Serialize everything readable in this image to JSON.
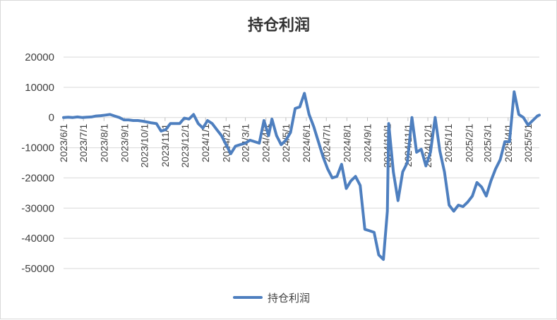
{
  "chart_data": {
    "type": "line",
    "title": "持仓利润",
    "xlabel": "",
    "ylabel": "",
    "ylim": [
      -50000,
      20000
    ],
    "yticks": [
      20000,
      10000,
      0,
      -10000,
      -20000,
      -30000,
      -40000,
      -50000
    ],
    "ytick_labels": [
      "20000",
      "10000",
      "0",
      "-10000",
      "-20000",
      "-30000",
      "-40000",
      "-50000"
    ],
    "x_range": [
      "2023-06-01",
      "2025-05-18"
    ],
    "xticks": [
      "2023/6/1",
      "2023/7/1",
      "2023/8/1",
      "2023/9/1",
      "2023/10/1",
      "2023/11/1",
      "2023/12/1",
      "2024/1/1",
      "2024/2/1",
      "2024/3/1",
      "2024/4/1",
      "2024/5/1",
      "2024/6/1",
      "2024/7/1",
      "2024/8/1",
      "2024/9/1",
      "2024/10/1",
      "2024/11/1",
      "2024/12/1",
      "2025/1/1",
      "2025/2/1",
      "2025/3/1",
      "2025/4/1",
      "2025/5/1"
    ],
    "grid": true,
    "legend": "bottom",
    "series": [
      {
        "name": "持仓利润",
        "color": "#4e7fbf",
        "points": [
          [
            "2023-06-01",
            0
          ],
          [
            "2023-06-08",
            100
          ],
          [
            "2023-06-15",
            0
          ],
          [
            "2023-06-22",
            200
          ],
          [
            "2023-06-29",
            0
          ],
          [
            "2023-07-06",
            100
          ],
          [
            "2023-07-13",
            200
          ],
          [
            "2023-07-20",
            500
          ],
          [
            "2023-07-27",
            600
          ],
          [
            "2023-08-03",
            800
          ],
          [
            "2023-08-10",
            1000
          ],
          [
            "2023-08-17",
            500
          ],
          [
            "2023-08-24",
            0
          ],
          [
            "2023-08-31",
            -800
          ],
          [
            "2023-09-07",
            -800
          ],
          [
            "2023-09-14",
            -1000
          ],
          [
            "2023-09-21",
            -1000
          ],
          [
            "2023-09-28",
            -1200
          ],
          [
            "2023-10-05",
            -1500
          ],
          [
            "2023-10-12",
            -1800
          ],
          [
            "2023-10-19",
            -2000
          ],
          [
            "2023-10-26",
            -4500
          ],
          [
            "2023-11-02",
            -4000
          ],
          [
            "2023-11-09",
            -2000
          ],
          [
            "2023-11-16",
            -2000
          ],
          [
            "2023-11-23",
            -2000
          ],
          [
            "2023-11-30",
            -200
          ],
          [
            "2023-12-07",
            -500
          ],
          [
            "2023-12-14",
            1000
          ],
          [
            "2023-12-21",
            -2000
          ],
          [
            "2023-12-28",
            -3500
          ],
          [
            "2024-01-04",
            -1000
          ],
          [
            "2024-01-11",
            -2000
          ],
          [
            "2024-01-18",
            -4000
          ],
          [
            "2024-01-25",
            -6000
          ],
          [
            "2024-02-01",
            -9000
          ],
          [
            "2024-02-08",
            -12000
          ],
          [
            "2024-02-15",
            -9500
          ],
          [
            "2024-02-22",
            -9000
          ],
          [
            "2024-03-01",
            -8500
          ],
          [
            "2024-03-08",
            -7500
          ],
          [
            "2024-03-15",
            -8000
          ],
          [
            "2024-03-22",
            -8500
          ],
          [
            "2024-03-29",
            -1000
          ],
          [
            "2024-04-05",
            -6000
          ],
          [
            "2024-04-10",
            -500
          ],
          [
            "2024-04-17",
            -6000
          ],
          [
            "2024-04-24",
            -9000
          ],
          [
            "2024-05-01",
            -7500
          ],
          [
            "2024-05-08",
            -5000
          ],
          [
            "2024-05-15",
            3000
          ],
          [
            "2024-05-22",
            3500
          ],
          [
            "2024-05-29",
            8000
          ],
          [
            "2024-06-05",
            1000
          ],
          [
            "2024-06-12",
            -3000
          ],
          [
            "2024-06-19",
            -8000
          ],
          [
            "2024-06-26",
            -13000
          ],
          [
            "2024-07-03",
            -17000
          ],
          [
            "2024-07-10",
            -20000
          ],
          [
            "2024-07-17",
            -19500
          ],
          [
            "2024-07-24",
            -15500
          ],
          [
            "2024-07-31",
            -23500
          ],
          [
            "2024-08-07",
            -21000
          ],
          [
            "2024-08-14",
            -19500
          ],
          [
            "2024-08-21",
            -22500
          ],
          [
            "2024-08-28",
            -37000
          ],
          [
            "2024-09-04",
            -37500
          ],
          [
            "2024-09-11",
            -38000
          ],
          [
            "2024-09-18",
            -45500
          ],
          [
            "2024-09-25",
            -47000
          ],
          [
            "2024-10-01",
            -31000
          ],
          [
            "2024-10-03",
            -2000
          ],
          [
            "2024-10-10",
            -18000
          ],
          [
            "2024-10-17",
            -27500
          ],
          [
            "2024-10-24",
            -18000
          ],
          [
            "2024-10-31",
            -15000
          ],
          [
            "2024-11-07",
            0
          ],
          [
            "2024-11-14",
            -11500
          ],
          [
            "2024-11-21",
            -10500
          ],
          [
            "2024-11-28",
            -16000
          ],
          [
            "2024-12-05",
            -11500
          ],
          [
            "2024-12-12",
            0
          ],
          [
            "2024-12-19",
            -11000
          ],
          [
            "2024-12-26",
            -18000
          ],
          [
            "2025-01-02",
            -29000
          ],
          [
            "2025-01-09",
            -31000
          ],
          [
            "2025-01-16",
            -29000
          ],
          [
            "2025-01-23",
            -29500
          ],
          [
            "2025-01-30",
            -28000
          ],
          [
            "2025-02-06",
            -26000
          ],
          [
            "2025-02-13",
            -21500
          ],
          [
            "2025-02-20",
            -23000
          ],
          [
            "2025-02-27",
            -26000
          ],
          [
            "2025-03-06",
            -21000
          ],
          [
            "2025-03-13",
            -17000
          ],
          [
            "2025-03-20",
            -14000
          ],
          [
            "2025-03-27",
            -8000
          ],
          [
            "2025-04-03",
            -8000
          ],
          [
            "2025-04-10",
            8500
          ],
          [
            "2025-04-17",
            1000
          ],
          [
            "2025-04-24",
            0
          ],
          [
            "2025-05-01",
            -2500
          ],
          [
            "2025-05-08",
            -1000
          ],
          [
            "2025-05-15",
            500
          ],
          [
            "2025-05-18",
            800
          ]
        ]
      }
    ]
  }
}
